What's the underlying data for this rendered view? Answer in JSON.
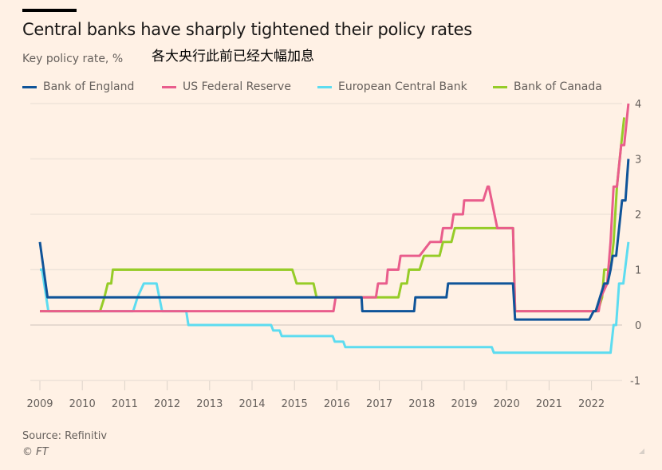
{
  "header": {
    "title": "Central banks have sharply tightened their policy rates",
    "subtitle": "Key policy rate, %",
    "chinese_caption": "各大央行此前已经大幅加息"
  },
  "footer": {
    "source": "Source: Refinitiv",
    "credit": "© FT"
  },
  "chart_data": {
    "type": "line",
    "title": "Central banks have sharply tightened their policy rates",
    "ylabel": "Key policy rate, %",
    "xlabel": "",
    "xlim": [
      2009,
      2022.9
    ],
    "ylim": [
      -1,
      4
    ],
    "x_ticks": [
      "2009",
      "2010",
      "2011",
      "2012",
      "2013",
      "2014",
      "2015",
      "2016",
      "2017",
      "2018",
      "2019",
      "2020",
      "2021",
      "2022"
    ],
    "y_ticks": [
      "4",
      "3",
      "2",
      "1",
      "0",
      "-1"
    ],
    "y_tick_values": [
      4,
      3,
      2,
      1,
      0,
      -1
    ],
    "grid": true,
    "legend": "top",
    "series": [
      {
        "name": "Bank of England",
        "color": "#0f5499",
        "points": [
          [
            2009.0,
            1.5
          ],
          [
            2009.18,
            0.5
          ],
          [
            2016.58,
            0.5
          ],
          [
            2016.6,
            0.25
          ],
          [
            2017.82,
            0.25
          ],
          [
            2017.85,
            0.5
          ],
          [
            2018.58,
            0.5
          ],
          [
            2018.62,
            0.75
          ],
          [
            2020.15,
            0.75
          ],
          [
            2020.2,
            0.1
          ],
          [
            2021.95,
            0.1
          ],
          [
            2022.05,
            0.25
          ],
          [
            2022.1,
            0.25
          ],
          [
            2022.2,
            0.5
          ],
          [
            2022.3,
            0.75
          ],
          [
            2022.38,
            0.75
          ],
          [
            2022.45,
            1.0
          ],
          [
            2022.5,
            1.25
          ],
          [
            2022.58,
            1.25
          ],
          [
            2022.72,
            2.25
          ],
          [
            2022.8,
            2.25
          ],
          [
            2022.87,
            3.0
          ]
        ]
      },
      {
        "name": "US Federal Reserve",
        "color": "#e95d8c",
        "points": [
          [
            2009.0,
            0.25
          ],
          [
            2015.92,
            0.25
          ],
          [
            2015.97,
            0.5
          ],
          [
            2016.92,
            0.5
          ],
          [
            2016.97,
            0.75
          ],
          [
            2017.17,
            0.75
          ],
          [
            2017.2,
            1.0
          ],
          [
            2017.45,
            1.0
          ],
          [
            2017.5,
            1.25
          ],
          [
            2017.95,
            1.25
          ],
          [
            2018.2,
            1.5
          ],
          [
            2018.45,
            1.5
          ],
          [
            2018.5,
            1.75
          ],
          [
            2018.7,
            1.75
          ],
          [
            2018.75,
            2.0
          ],
          [
            2018.97,
            2.0
          ],
          [
            2019.0,
            2.25
          ],
          [
            2019.45,
            2.25
          ],
          [
            2019.55,
            2.5
          ],
          [
            2019.58,
            2.5
          ],
          [
            2019.78,
            1.75
          ],
          [
            2020.15,
            1.75
          ],
          [
            2020.2,
            0.25
          ],
          [
            2022.17,
            0.25
          ],
          [
            2022.22,
            0.5
          ],
          [
            2022.37,
            0.75
          ],
          [
            2022.45,
            1.5
          ],
          [
            2022.52,
            2.5
          ],
          [
            2022.6,
            2.5
          ],
          [
            2022.7,
            3.25
          ],
          [
            2022.77,
            3.25
          ],
          [
            2022.87,
            4.0
          ]
        ]
      },
      {
        "name": "European Central Bank",
        "color": "#5ddcf0",
        "points": [
          [
            2009.0,
            1.0
          ],
          [
            2009.05,
            1.0
          ],
          [
            2009.2,
            0.25
          ],
          [
            2011.2,
            0.25
          ],
          [
            2011.3,
            0.5
          ],
          [
            2011.45,
            0.75
          ],
          [
            2011.75,
            0.75
          ],
          [
            2011.88,
            0.25
          ],
          [
            2012.45,
            0.25
          ],
          [
            2012.5,
            0.0
          ],
          [
            2013.85,
            0.0
          ],
          [
            2014.45,
            0.0
          ],
          [
            2014.5,
            -0.1
          ],
          [
            2014.65,
            -0.1
          ],
          [
            2014.7,
            -0.2
          ],
          [
            2015.9,
            -0.2
          ],
          [
            2015.95,
            -0.3
          ],
          [
            2016.15,
            -0.3
          ],
          [
            2016.2,
            -0.4
          ],
          [
            2019.65,
            -0.4
          ],
          [
            2019.7,
            -0.5
          ],
          [
            2022.45,
            -0.5
          ],
          [
            2022.52,
            0.0
          ],
          [
            2022.58,
            0.0
          ],
          [
            2022.65,
            0.75
          ],
          [
            2022.75,
            0.75
          ],
          [
            2022.87,
            1.5
          ]
        ]
      },
      {
        "name": "Bank of Canada",
        "color": "#96cc28",
        "points": [
          [
            2009.0,
            0.25
          ],
          [
            2010.42,
            0.25
          ],
          [
            2010.52,
            0.5
          ],
          [
            2010.6,
            0.75
          ],
          [
            2010.68,
            0.75
          ],
          [
            2010.72,
            1.0
          ],
          [
            2014.95,
            1.0
          ],
          [
            2015.05,
            0.75
          ],
          [
            2015.45,
            0.75
          ],
          [
            2015.52,
            0.5
          ],
          [
            2017.45,
            0.5
          ],
          [
            2017.52,
            0.75
          ],
          [
            2017.65,
            0.75
          ],
          [
            2017.7,
            1.0
          ],
          [
            2017.95,
            1.0
          ],
          [
            2018.05,
            1.25
          ],
          [
            2018.42,
            1.25
          ],
          [
            2018.5,
            1.5
          ],
          [
            2018.7,
            1.5
          ],
          [
            2018.78,
            1.75
          ],
          [
            2019.75,
            1.75
          ],
          [
            2020.15,
            1.75
          ],
          [
            2020.2,
            0.25
          ],
          [
            2022.15,
            0.25
          ],
          [
            2022.25,
            0.5
          ],
          [
            2022.3,
            1.0
          ],
          [
            2022.45,
            1.0
          ],
          [
            2022.52,
            1.5
          ],
          [
            2022.6,
            2.5
          ],
          [
            2022.7,
            3.25
          ],
          [
            2022.77,
            3.75
          ]
        ]
      }
    ]
  }
}
